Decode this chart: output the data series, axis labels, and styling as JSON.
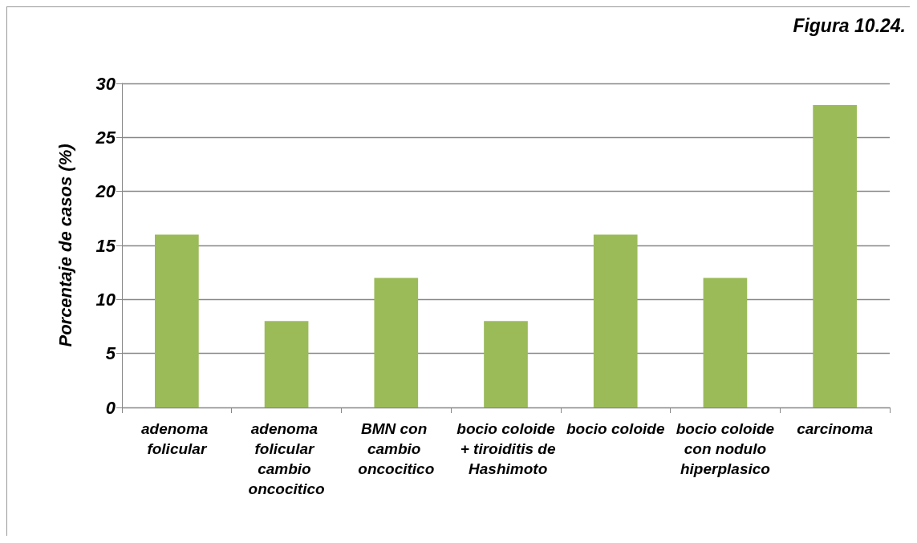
{
  "chart_data": {
    "type": "bar",
    "title": "Figura 10.24.",
    "ylabel": "Porcentaje de casos (%)",
    "categories": [
      "adenoma folicular",
      "adenoma folicular cambio oncocitico",
      "BMN con cambio oncocitico",
      "bocio coloide + tiroiditis de Hashimoto",
      "bocio coloide",
      "bocio coloide con nodulo hiperplasico",
      "carcinoma"
    ],
    "values": [
      16,
      8,
      12,
      8,
      16,
      12,
      28
    ],
    "color": "#9bbb59",
    "ylim": [
      0,
      30
    ],
    "yticks": [
      0,
      5,
      10,
      15,
      20,
      25,
      30
    ],
    "grid": "y"
  }
}
